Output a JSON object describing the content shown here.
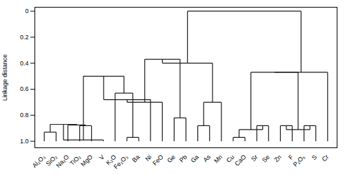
{
  "chart_data": {
    "type": "dendrogram",
    "categories": [
      "Al₂O₃",
      "SiO₂",
      "Na₂O",
      "TiO₂",
      "MgO",
      "V",
      "K₂O",
      "Fe₂O₃",
      "Ba",
      "Ni",
      "FeO",
      "Ge",
      "Pb",
      "Ga",
      "As",
      "Mn",
      "Cu",
      "CaO",
      "Sr",
      "Se",
      "Zn",
      "F",
      "P₂O₅",
      "S",
      "Cr"
    ],
    "ylabel": "Linkage distance",
    "color": "#1a1a1a",
    "leaf_height": 1.0,
    "merges": [
      [
        0,
        1,
        0.93
      ],
      [
        3,
        4,
        0.88
      ],
      [
        2,
        26,
        0.875
      ],
      [
        25,
        27,
        0.87
      ],
      [
        5,
        28,
        0.99
      ],
      [
        7,
        8,
        0.97
      ],
      [
        6,
        30,
        0.63
      ],
      [
        29,
        31,
        0.5
      ],
      [
        9,
        32,
        0.68
      ],
      [
        10,
        33,
        0.7
      ],
      [
        11,
        12,
        0.82
      ],
      [
        34,
        35,
        0.37
      ],
      [
        13,
        14,
        0.88
      ],
      [
        15,
        37,
        0.7
      ],
      [
        36,
        38,
        0.4
      ],
      [
        16,
        17,
        0.97
      ],
      [
        18,
        19,
        0.88
      ],
      [
        40,
        41,
        0.91
      ],
      [
        20,
        21,
        0.88
      ],
      [
        22,
        23,
        0.88
      ],
      [
        43,
        44,
        0.91
      ],
      [
        42,
        45,
        0.47
      ],
      [
        24,
        46,
        0.47
      ],
      [
        39,
        47,
        0.0
      ]
    ],
    "xlim": [
      -0.8,
      24.8
    ],
    "ylim": [
      1.05,
      -0.03
    ],
    "yticks": [
      0,
      0.2,
      0.4,
      0.6,
      0.8,
      {
        "value": 1.0,
        "label": "1.0"
      }
    ],
    "grid": false
  }
}
